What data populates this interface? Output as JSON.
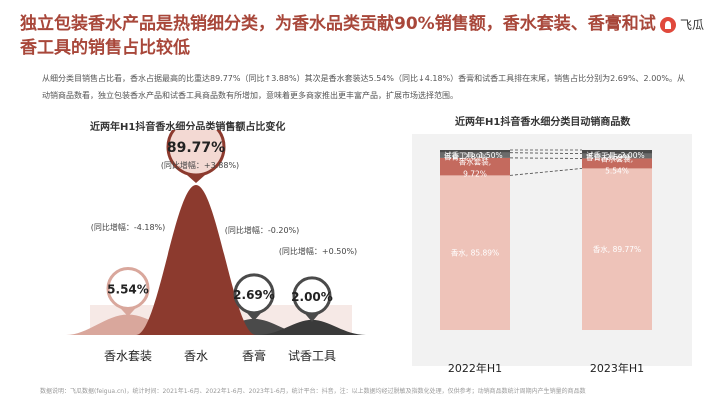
{
  "header": {
    "title": "独立包装香水产品是热销细分类，为香水品类贡献90%销售额，香水套装、香膏和试香工具的销售占比较低",
    "logo_text": "飞瓜"
  },
  "description": "从细分类目销售占比看，香水占据最高的比重达89.77%（同比↑3.88%）其次是香水套装达5.54%（同比↓4.18%）香膏和试香工具排在末尾，销售占比分别为2.69%、2.00%。从动销商品数看，独立包装香水产品和试香工具商品数有所增加，意味着更多商家推出更丰富产品，扩展市场选择范围。",
  "footer": "数据说明：飞瓜数据(feigua.cn)，统计时间：2021年1-6月、2022年1-6月、2023年1-6月，统计平台：抖音，注：以上数据均经过脱敏及指数化处理，仅供参考；动销商品数统计周期内产生销量的商品数",
  "chart_data": [
    {
      "type": "area",
      "title": "近两年H1抖音香水细分品类销售额占比变化",
      "categories": [
        "香水套装",
        "香水",
        "香膏",
        "试香工具"
      ],
      "values": [
        5.54,
        89.77,
        2.69,
        2.0
      ],
      "value_labels": [
        "5.54%",
        "89.77%",
        "2.69%",
        "2.00%"
      ],
      "yoy_labels": [
        "(同比增幅：-4.18%)",
        "(同比增幅：+3.88%)",
        "(同比增幅：-0.20%)",
        "(同比增幅：+0.50%)"
      ],
      "colors": [
        "#D9A79C",
        "#8C3A2E",
        "#4A4A4A",
        "#3A3A3A"
      ]
    },
    {
      "type": "bar",
      "stacked": true,
      "normalized": true,
      "title": "近两年H1抖音香水细分类目动销商品数",
      "categories": [
        "2022年H1",
        "2023年H1"
      ],
      "series": [
        {
          "name": "香水",
          "values": [
            85.89,
            89.77
          ],
          "labels": [
            "香水, 85.89%",
            "香水, 89.77%"
          ],
          "color": "#EEC3B9"
        },
        {
          "name": "香水套装",
          "values": [
            9.72,
            5.54
          ],
          "labels": [
            "香水套装, 9.72%",
            "香水套装, 5.54%"
          ],
          "color": "#C46A5E"
        },
        {
          "name": "香膏",
          "values": [
            2.89,
            2.69
          ],
          "labels": [
            "香膏, 2.89%",
            "香膏, 2.69%"
          ],
          "color": "#6B6B6B"
        },
        {
          "name": "试香工具",
          "values": [
            1.5,
            2.0
          ],
          "labels": [
            "试香工具, 1.50%",
            "试香工具, 2.00%"
          ],
          "color": "#4A4A4A"
        }
      ]
    }
  ]
}
